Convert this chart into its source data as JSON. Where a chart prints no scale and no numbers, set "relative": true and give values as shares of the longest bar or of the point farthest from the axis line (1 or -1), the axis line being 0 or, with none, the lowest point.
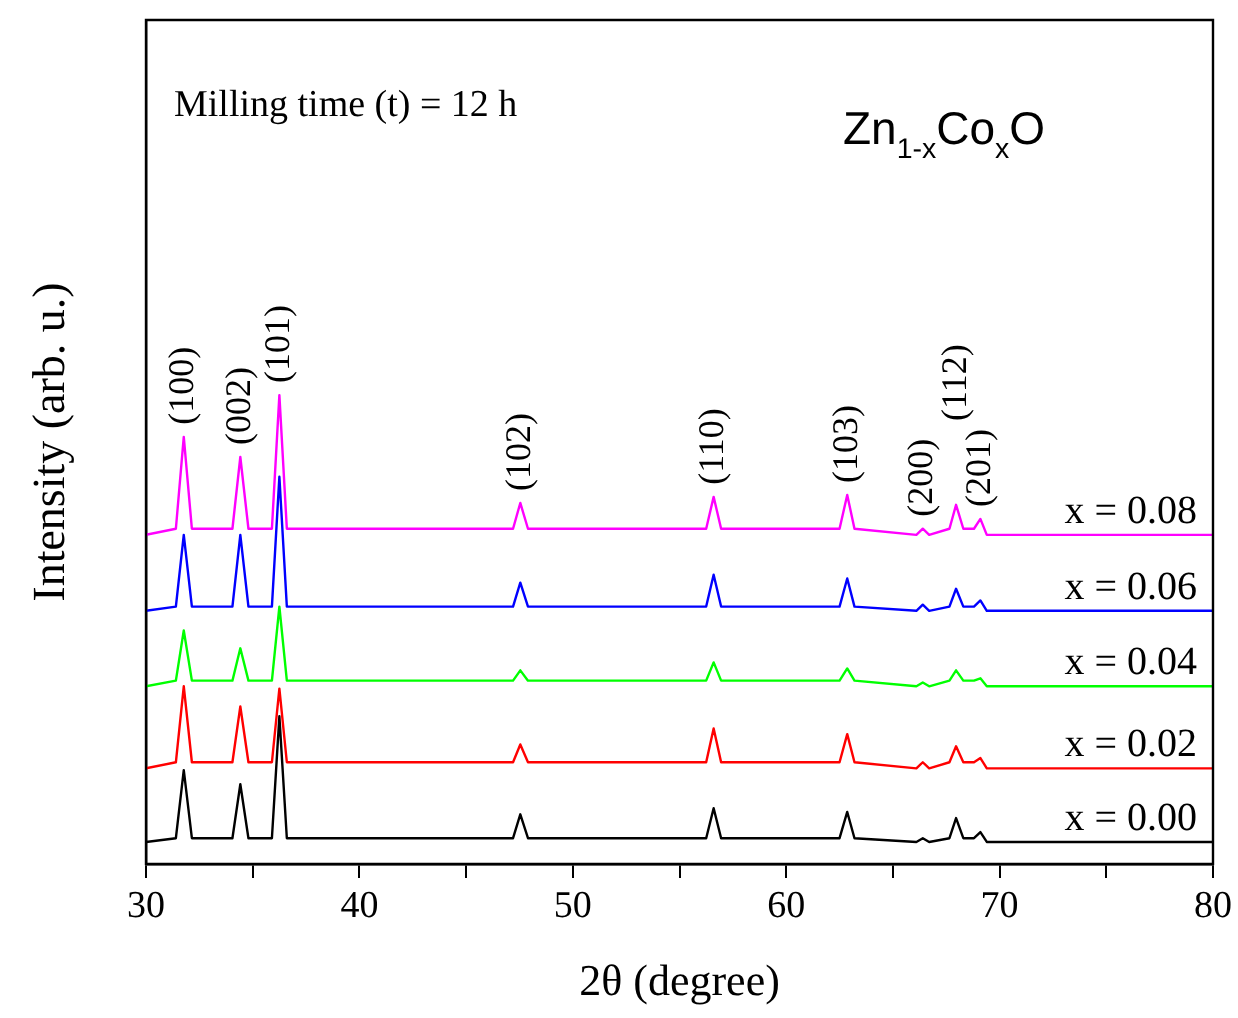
{
  "chart_data": {
    "type": "line",
    "relative": true,
    "xlabel": "2θ (degree)",
    "ylabel": "Intensity (arb. u.)",
    "xlim": [
      30,
      80
    ],
    "xticks": [
      30,
      {
        "value": 35,
        "label": null
      },
      40,
      {
        "value": 45,
        "label": null
      },
      50,
      {
        "value": 55,
        "label": null
      },
      60,
      {
        "value": 65,
        "label": null
      },
      70,
      {
        "value": 75,
        "label": null
      },
      80
    ],
    "grid": false,
    "legend": false,
    "marker": "none",
    "line_style": "solid",
    "x": [
      30,
      31.4,
      31.77,
      32.15,
      34.05,
      34.42,
      34.8,
      35.9,
      36.25,
      36.6,
      47.2,
      47.54,
      47.9,
      56.25,
      56.6,
      56.95,
      62.5,
      62.86,
      63.2,
      66.1,
      66.4,
      66.7,
      67.65,
      67.96,
      68.3,
      68.8,
      69.1,
      69.4,
      80
    ],
    "series": [
      {
        "name": "x = 0.00",
        "color": "#000000",
        "values": [
          0.047,
          0.055,
          0.2,
          0.055,
          0.055,
          0.17,
          0.055,
          0.055,
          0.315,
          0.055,
          0.055,
          0.106,
          0.055,
          0.055,
          0.119,
          0.055,
          0.055,
          0.111,
          0.055,
          0.047,
          0.055,
          0.047,
          0.055,
          0.098,
          0.055,
          0.055,
          0.068,
          0.047,
          0.047
        ]
      },
      {
        "name": "x = 0.02",
        "color": "#ff0000",
        "values": [
          0.204,
          0.217,
          0.379,
          0.217,
          0.217,
          0.336,
          0.217,
          0.217,
          0.374,
          0.217,
          0.217,
          0.255,
          0.217,
          0.217,
          0.289,
          0.217,
          0.217,
          0.277,
          0.217,
          0.204,
          0.217,
          0.204,
          0.217,
          0.251,
          0.217,
          0.217,
          0.226,
          0.204,
          0.204
        ]
      },
      {
        "name": "x = 0.04",
        "color": "#00ff00",
        "values": [
          0.379,
          0.391,
          0.498,
          0.391,
          0.391,
          0.46,
          0.391,
          0.391,
          0.549,
          0.391,
          0.391,
          0.413,
          0.391,
          0.391,
          0.43,
          0.391,
          0.391,
          0.417,
          0.391,
          0.379,
          0.387,
          0.379,
          0.391,
          0.413,
          0.391,
          0.391,
          0.396,
          0.379,
          0.379
        ]
      },
      {
        "name": "x = 0.06",
        "color": "#0000ff",
        "values": [
          0.54,
          0.549,
          0.702,
          0.549,
          0.549,
          0.702,
          0.549,
          0.549,
          0.826,
          0.549,
          0.549,
          0.6,
          0.549,
          0.549,
          0.617,
          0.549,
          0.549,
          0.609,
          0.549,
          0.54,
          0.553,
          0.54,
          0.549,
          0.587,
          0.549,
          0.549,
          0.562,
          0.54,
          0.54
        ]
      },
      {
        "name": "x = 0.08",
        "color": "#ff00ff",
        "values": [
          0.702,
          0.715,
          0.911,
          0.715,
          0.715,
          0.868,
          0.715,
          0.715,
          1,
          0.715,
          0.715,
          0.77,
          0.715,
          0.715,
          0.783,
          0.715,
          0.715,
          0.787,
          0.715,
          0.702,
          0.715,
          0.702,
          0.715,
          0.766,
          0.715,
          0.715,
          0.736,
          0.702,
          0.702
        ]
      }
    ],
    "annotations": [
      "Milling time (t) = 12 h",
      "Zn$_{1-x}$Co$_{x}$O",
      {
        "text": "(100)",
        "x": 31.77,
        "y": 0.911
      },
      {
        "text": "(002)",
        "x": 34.42,
        "y": 0.868
      },
      {
        "text": "(101)",
        "x": 36.25,
        "y": 1
      },
      {
        "text": "(102)",
        "x": 47.54,
        "y": 0.77
      },
      {
        "text": "(110)",
        "x": 56.6,
        "y": 0.783
      },
      {
        "text": "(103)",
        "x": 62.86,
        "y": 0.787
      },
      {
        "text": "(200)",
        "x": 66.4,
        "y": 0.715
      },
      {
        "text": "(201)",
        "x": 69.1,
        "y": 0.736
      },
      {
        "text": "(112)",
        "x": 67.96,
        "y": 0.766
      }
    ]
  }
}
